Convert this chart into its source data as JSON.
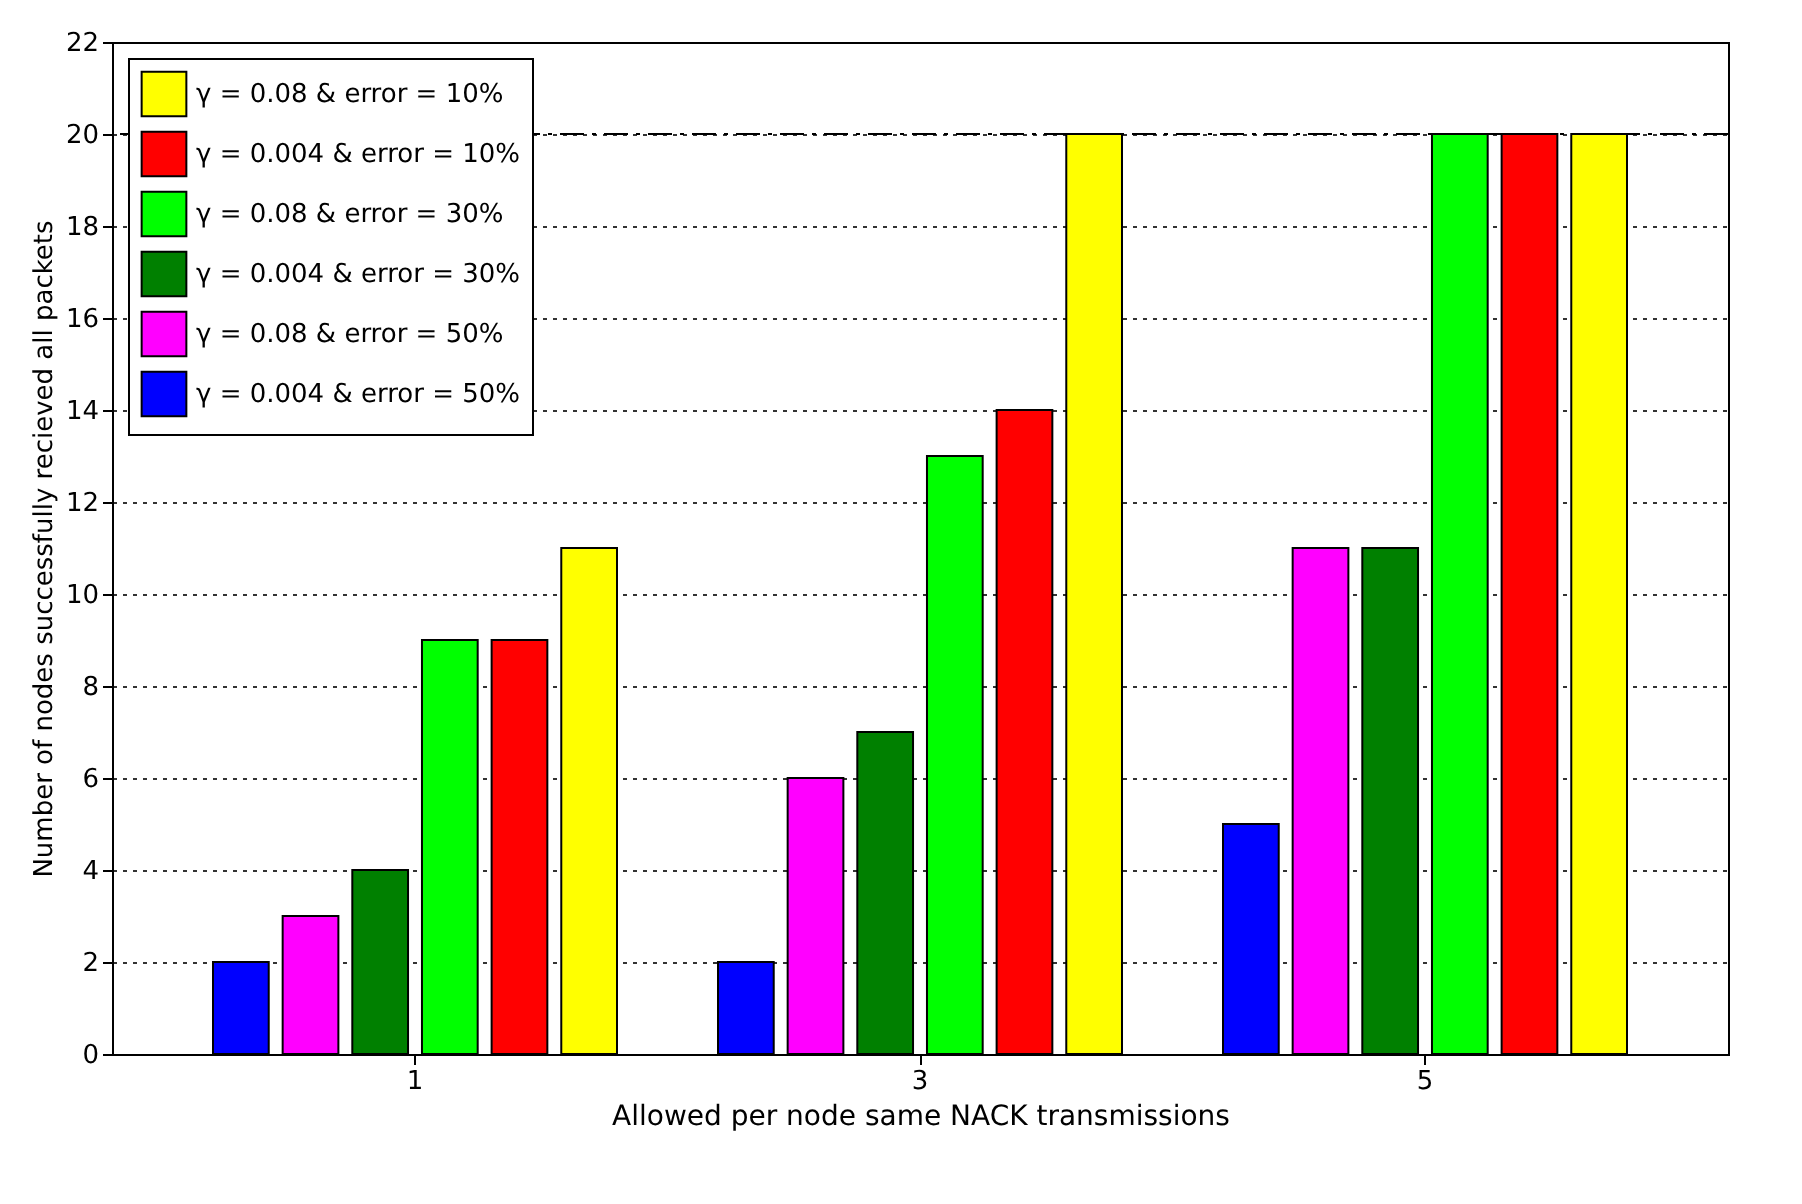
{
  "chart_data": {
    "type": "bar",
    "xlabel": "Allowed per node same NACK transmissions",
    "ylabel": "Number of nodes successfully recieved all packets",
    "categories": [
      "1",
      "3",
      "5"
    ],
    "series": [
      {
        "name": "γ = 0.004 & error = 50%",
        "color": "#0000ff",
        "values": [
          2,
          2,
          5
        ]
      },
      {
        "name": "γ = 0.08 & error = 50%",
        "color": "#ff00ff",
        "values": [
          3,
          6,
          11
        ]
      },
      {
        "name": "γ = 0.004 & error = 30%",
        "color": "#008000",
        "values": [
          4,
          7,
          11
        ]
      },
      {
        "name": "γ = 0.08 & error = 30%",
        "color": "#00ff00",
        "values": [
          9,
          13,
          20
        ]
      },
      {
        "name": "γ = 0.004 & error = 10%",
        "color": "#ff0000",
        "values": [
          9,
          14,
          20
        ]
      },
      {
        "name": "γ = 0.08 & error = 10%",
        "color": "#ffff00",
        "values": [
          11,
          20,
          20
        ]
      }
    ],
    "ylim": [
      0,
      22
    ],
    "yticks": [
      0,
      2,
      4,
      6,
      8,
      10,
      12,
      14,
      16,
      18,
      20,
      22
    ],
    "grid": "y",
    "legend": "top left",
    "ref_lines": [
      {
        "axis": "y",
        "value": 20,
        "color": "#000000",
        "line_style": "dashed"
      }
    ]
  }
}
